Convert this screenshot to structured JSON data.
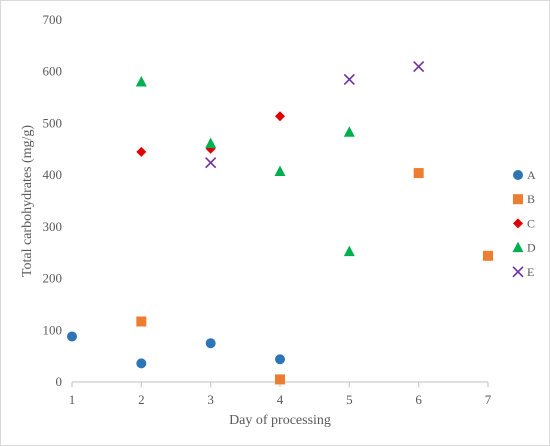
{
  "chart_data": {
    "type": "scatter",
    "title": "",
    "xlabel": "Day of processing",
    "ylabel": "Total carbohydrates (mg/g)",
    "xlim": [
      1,
      7
    ],
    "ylim": [
      0,
      700
    ],
    "xticks": [
      1,
      2,
      3,
      4,
      5,
      6,
      7
    ],
    "yticks": [
      0,
      100,
      200,
      300,
      400,
      500,
      600,
      700
    ],
    "grid": false,
    "legend_position": "right",
    "series": [
      {
        "name": "A",
        "marker": "circle",
        "color": "#2E75B6",
        "points": [
          [
            1,
            88
          ],
          [
            2,
            36
          ],
          [
            3,
            75
          ],
          [
            4,
            44
          ]
        ]
      },
      {
        "name": "B",
        "marker": "square",
        "color": "#ED7D31",
        "points": [
          [
            2,
            117
          ],
          [
            4,
            5
          ],
          [
            6,
            404
          ],
          [
            7,
            244
          ]
        ]
      },
      {
        "name": "C",
        "marker": "diamond",
        "color": "#E00000",
        "points": [
          [
            2,
            445
          ],
          [
            3,
            451
          ],
          [
            4,
            514
          ]
        ]
      },
      {
        "name": "D",
        "marker": "triangle",
        "color": "#00B050",
        "points": [
          [
            2,
            580
          ],
          [
            3,
            461
          ],
          [
            4,
            407
          ],
          [
            5,
            483
          ],
          [
            5,
            252
          ]
        ]
      },
      {
        "name": "E",
        "marker": "cross",
        "color": "#7030A0",
        "points": [
          [
            3,
            424
          ],
          [
            5,
            585
          ],
          [
            6,
            610
          ]
        ]
      }
    ]
  }
}
